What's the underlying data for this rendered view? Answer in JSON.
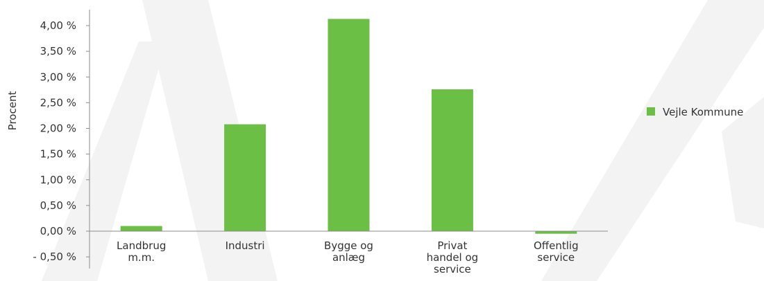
{
  "chart_data": {
    "type": "bar",
    "title": "",
    "xlabel": "",
    "ylabel": "Procent",
    "ylim": [
      -0.5,
      4.0
    ],
    "yticks": [
      {
        "value": -0.5,
        "label": "- 0,50 %"
      },
      {
        "value": 0.0,
        "label": "0,00 %"
      },
      {
        "value": 0.5,
        "label": "0,50 %"
      },
      {
        "value": 1.0,
        "label": "1,00 %"
      },
      {
        "value": 1.5,
        "label": "1,50 %"
      },
      {
        "value": 2.0,
        "label": "2,00 %"
      },
      {
        "value": 2.5,
        "label": "2,50 %"
      },
      {
        "value": 3.0,
        "label": "3,00 %"
      },
      {
        "value": 3.5,
        "label": "3,50 %"
      },
      {
        "value": 4.0,
        "label": "4,00 %"
      }
    ],
    "categories": [
      [
        "Landbrug",
        "m.m."
      ],
      [
        "Industri"
      ],
      [
        "Bygge og",
        "anlæg"
      ],
      [
        "Privat",
        "handel og",
        "service"
      ],
      [
        "Offentlig",
        "service"
      ]
    ],
    "series": [
      {
        "name": "Vejle Kommune",
        "color": "#6cbf45",
        "values": [
          0.1,
          2.08,
          4.13,
          2.76,
          -0.05
        ]
      }
    ],
    "grid": false,
    "legend": {
      "position": "right"
    }
  }
}
